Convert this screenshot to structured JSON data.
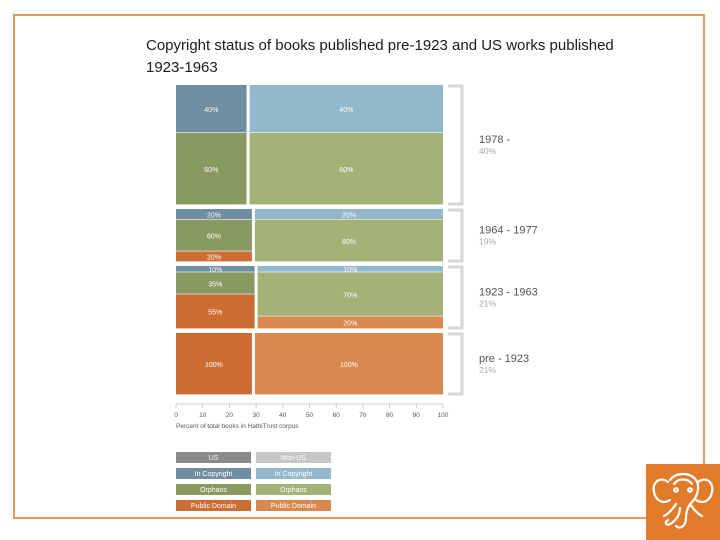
{
  "title": "Copyright status of books published pre-1923 and US works published 1923-1963",
  "chart_data": {
    "type": "bar",
    "layout": "mosaic (Marimekko), horizontal bands",
    "xlabel": "Percent of total books in HathiTrust corpus",
    "xticks": [
      0,
      10,
      20,
      30,
      40,
      50,
      60,
      70,
      80,
      90,
      100
    ],
    "xlim": [
      0,
      100
    ],
    "rows": [
      {
        "label": "1978 -",
        "share": "40%",
        "columns": [
          {
            "group": "US",
            "width": 27,
            "segments": [
              {
                "status": "In Copyright",
                "value": 40,
                "label": "40%"
              },
              {
                "status": "Orphans",
                "value": 60,
                "label": "60%"
              }
            ]
          },
          {
            "group": "Non-US",
            "width": 73,
            "segments": [
              {
                "status": "In Copyright",
                "value": 40,
                "label": "40%"
              },
              {
                "status": "Orphans",
                "value": 60,
                "label": "60%"
              }
            ]
          }
        ]
      },
      {
        "label": "1964 - 1977",
        "share": "19%",
        "columns": [
          {
            "group": "US",
            "width": 29,
            "segments": [
              {
                "status": "In Copyright",
                "value": 20,
                "label": "20%"
              },
              {
                "status": "Orphans",
                "value": 60,
                "label": "60%"
              },
              {
                "status": "Public Domain",
                "value": 20,
                "label": "20%"
              }
            ]
          },
          {
            "group": "Non-US",
            "width": 71,
            "segments": [
              {
                "status": "In Copyright",
                "value": 20,
                "label": "20%"
              },
              {
                "status": "Orphans",
                "value": 80,
                "label": "80%"
              }
            ]
          }
        ]
      },
      {
        "label": "1923 - 1963",
        "share": "21%",
        "columns": [
          {
            "group": "US",
            "width": 30,
            "segments": [
              {
                "status": "In Copyright",
                "value": 10,
                "label": "10%"
              },
              {
                "status": "Orphans",
                "value": 35,
                "label": "35%"
              },
              {
                "status": "Public Domain",
                "value": 55,
                "label": "55%"
              }
            ]
          },
          {
            "group": "Non-US",
            "width": 70,
            "segments": [
              {
                "status": "In Copyright",
                "value": 10,
                "label": "10%"
              },
              {
                "status": "Orphans",
                "value": 70,
                "label": "70%"
              },
              {
                "status": "Public Domain",
                "value": 20,
                "label": "20%"
              }
            ]
          }
        ]
      },
      {
        "label": "pre - 1923",
        "share": "21%",
        "columns": [
          {
            "group": "US",
            "width": 29,
            "segments": [
              {
                "status": "Public Domain",
                "value": 100,
                "label": "100%"
              }
            ]
          },
          {
            "group": "Non-US",
            "width": 71,
            "segments": [
              {
                "status": "Public Domain",
                "value": 100,
                "label": "100%"
              }
            ]
          }
        ]
      }
    ],
    "legend": {
      "placement": "bottom",
      "groups": [
        "US",
        "Non-US"
      ],
      "statuses": [
        "In Copyright",
        "Orphans",
        "Public Domain"
      ]
    },
    "colors": {
      "US": {
        "In Copyright": "#6f8fa0",
        "Orphans": "#889a62",
        "Public Domain": "#cc6e33",
        "Header": "#8a8a8a"
      },
      "Non-US": {
        "In Copyright": "#93b8cc",
        "Orphans": "#a3b378",
        "Public Domain": "#d9894e",
        "Header": "#c6c6c6"
      }
    }
  },
  "logo": {
    "icon": "elephant-icon",
    "color": "#e07b2a"
  }
}
